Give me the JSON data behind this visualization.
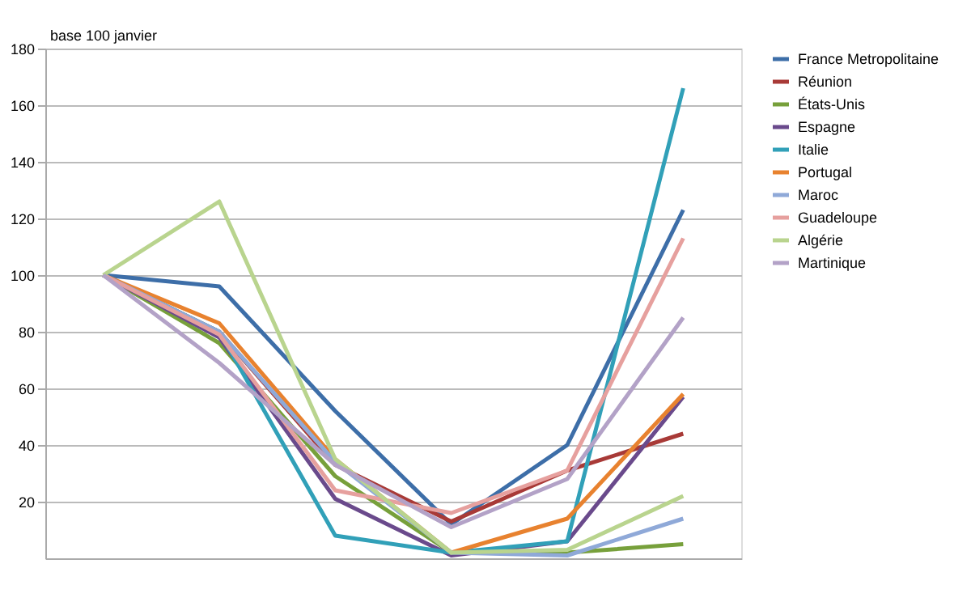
{
  "chart_data": {
    "type": "line",
    "annotations": [
      "base 100 janvier"
    ],
    "categories": [
      null,
      null,
      null,
      null,
      null,
      null
    ],
    "ylim": [
      0,
      180
    ],
    "yticks": [
      20,
      40,
      60,
      80,
      100,
      120,
      140,
      160,
      180
    ],
    "grid": "y",
    "legend": "right",
    "marker": "none",
    "line_style": "solid",
    "series": [
      {
        "name": "France Metropolitaine",
        "color": "#3d6ea8",
        "values": [
          100,
          96,
          52,
          12,
          40,
          123
        ]
      },
      {
        "name": "Réunion",
        "color": "#a83a37",
        "values": [
          100,
          80,
          33,
          13,
          31,
          44
        ]
      },
      {
        "name": "États-Unis",
        "color": "#77a03b",
        "values": [
          100,
          76,
          29,
          2,
          2,
          5
        ]
      },
      {
        "name": "Espagne",
        "color": "#6a4a8c",
        "values": [
          100,
          78,
          21,
          1,
          6,
          57
        ]
      },
      {
        "name": "Italie",
        "color": "#31a0b8",
        "values": [
          100,
          80,
          8,
          2,
          6,
          166
        ]
      },
      {
        "name": "Portugal",
        "color": "#e8822f",
        "values": [
          100,
          83,
          35,
          2,
          14,
          58
        ]
      },
      {
        "name": "Maroc",
        "color": "#8fa9d8",
        "values": [
          100,
          80,
          34,
          2,
          1,
          14
        ]
      },
      {
        "name": "Guadeloupe",
        "color": "#e6a09e",
        "values": [
          100,
          79,
          24,
          16,
          31,
          113
        ]
      },
      {
        "name": "Algérie",
        "color": "#b9d48e",
        "values": [
          100,
          126,
          35,
          2,
          3,
          22
        ]
      },
      {
        "name": "Martinique",
        "color": "#b3a2c7",
        "values": [
          100,
          69,
          33,
          11,
          28,
          85
        ]
      }
    ]
  }
}
